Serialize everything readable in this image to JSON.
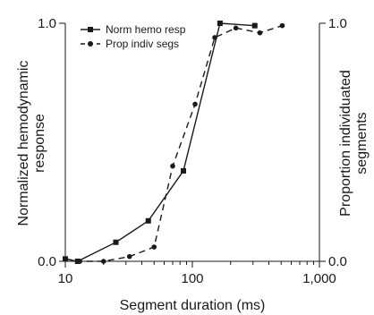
{
  "chart_data": {
    "type": "line",
    "xscale": "log",
    "xlim": [
      10,
      1000
    ],
    "ylim": [
      0,
      1
    ],
    "xlabel": "Segment duration (ms)",
    "ylabel_left": "Normalized hemodynamic response",
    "ylabel_right": "Proportion individuated segments",
    "xticks": [
      {
        "value": 10,
        "label": "10"
      },
      {
        "value": 100,
        "label": "100"
      },
      {
        "value": 1000,
        "label": "1,000"
      }
    ],
    "yticks_left": [
      {
        "value": 0,
        "label": "0.0"
      },
      {
        "value": 1,
        "label": "1.0"
      }
    ],
    "yticks_right": [
      {
        "value": 0,
        "label": "0.0"
      },
      {
        "value": 1,
        "label": "1.0"
      }
    ],
    "grid": false,
    "legend_position": "top-left",
    "series": [
      {
        "name": "Norm hemo resp",
        "style": "solid",
        "marker": "square",
        "color": "#1a1a1a",
        "points": [
          {
            "x": 10,
            "y": 0.01
          },
          {
            "x": 12.5,
            "y": 0.0
          },
          {
            "x": 25,
            "y": 0.08
          },
          {
            "x": 45,
            "y": 0.17
          },
          {
            "x": 85,
            "y": 0.38
          },
          {
            "x": 165,
            "y": 1.0
          },
          {
            "x": 310,
            "y": 0.99
          }
        ]
      },
      {
        "name": "Prop indiv segs",
        "style": "dashed",
        "marker": "circle",
        "color": "#1a1a1a",
        "points": [
          {
            "x": 10,
            "y": 0.01
          },
          {
            "x": 13,
            "y": 0.0
          },
          {
            "x": 20,
            "y": 0.0
          },
          {
            "x": 32,
            "y": 0.02
          },
          {
            "x": 50,
            "y": 0.06
          },
          {
            "x": 70,
            "y": 0.4
          },
          {
            "x": 105,
            "y": 0.66
          },
          {
            "x": 150,
            "y": 0.94
          },
          {
            "x": 220,
            "y": 0.98
          },
          {
            "x": 340,
            "y": 0.96
          },
          {
            "x": 510,
            "y": 0.99
          }
        ]
      }
    ]
  }
}
